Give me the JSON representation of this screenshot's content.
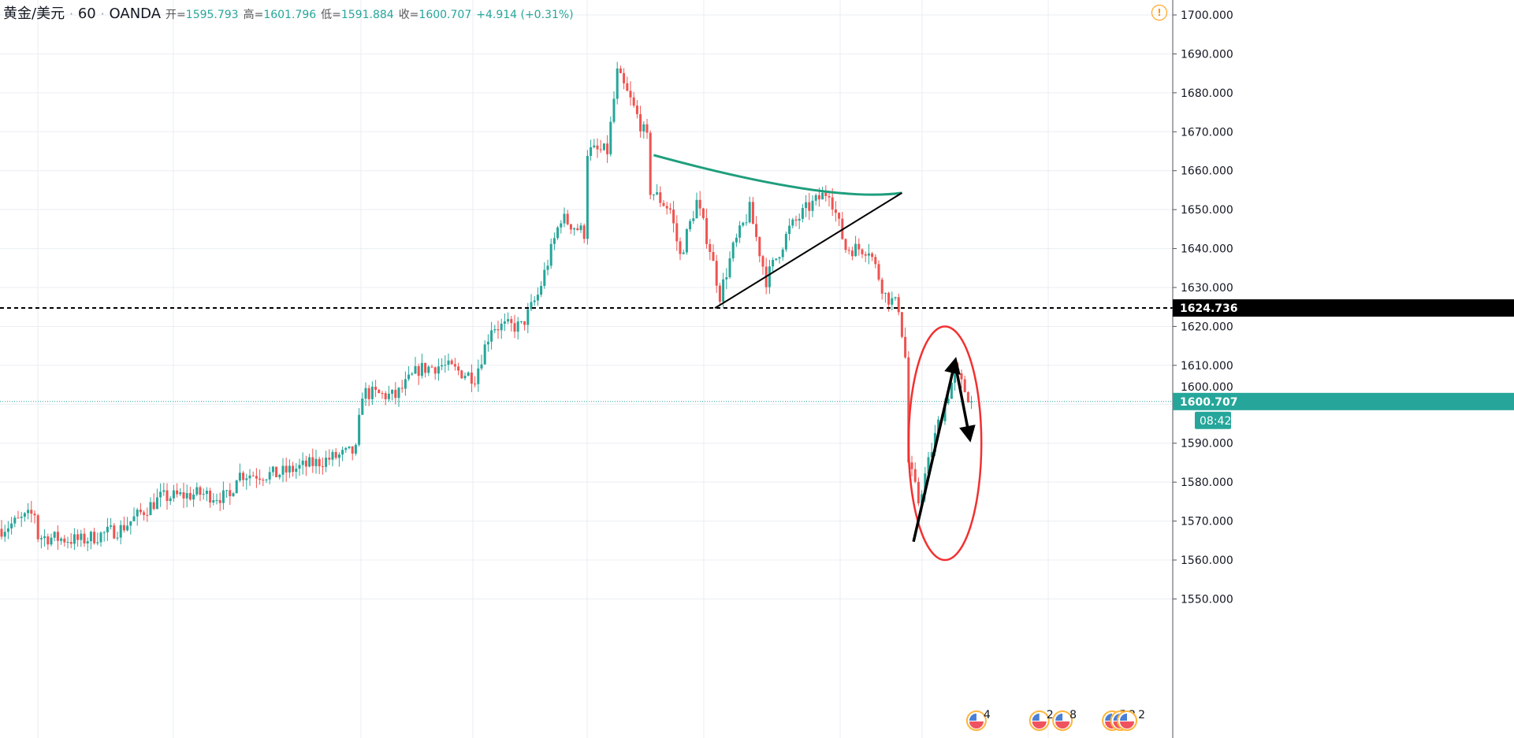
{
  "header": {
    "symbol": "黄金/美元",
    "interval": "60",
    "source": "OANDA",
    "sep": "·",
    "open_label": "开=",
    "open": "1595.793",
    "high_label": "高=",
    "high": "1601.796",
    "low_label": "低=",
    "low": "1591.884",
    "close_label": "收=",
    "close": "1600.707",
    "change": "+4.914 (+0.31%)"
  },
  "alert_icon": "!",
  "colors": {
    "up": "#26a69a",
    "down": "#ef5350",
    "trendline_green": "#1e9e7c",
    "ellipse": "#f23030",
    "grid": "#e9eef3"
  },
  "chart_data": {
    "type": "candlestick",
    "title": "黄金/美元 60 OANDA",
    "ylim": [
      1547,
      1703
    ],
    "y_ticks": [
      "1700.000",
      "1690.000",
      "1680.000",
      "1670.000",
      "1660.000",
      "1650.000",
      "1640.000",
      "1630.000",
      "1620.000",
      "1610.000",
      "1600.000",
      "1590.000",
      "1580.000",
      "1570.000",
      "1560.000",
      "1550.000"
    ],
    "bar_count": 294,
    "close_path": [
      [
        0,
        1568
      ],
      [
        10,
        1572
      ],
      [
        11,
        1566
      ],
      [
        24,
        1565
      ],
      [
        36,
        1568
      ],
      [
        48,
        1576
      ],
      [
        60,
        1577
      ],
      [
        69,
        1576
      ],
      [
        71,
        1582
      ],
      [
        83,
        1582
      ],
      [
        95,
        1585
      ],
      [
        107,
        1588
      ],
      [
        109,
        1603
      ],
      [
        119,
        1602
      ],
      [
        126,
        1609
      ],
      [
        133,
        1610
      ],
      [
        143,
        1607
      ],
      [
        148,
        1620
      ],
      [
        157,
        1620
      ],
      [
        162,
        1628
      ],
      [
        169,
        1648
      ],
      [
        176,
        1644
      ],
      [
        177,
        1665
      ],
      [
        183,
        1665
      ],
      [
        186,
        1685
      ],
      [
        190,
        1678
      ],
      [
        195,
        1668
      ],
      [
        196,
        1655
      ],
      [
        202,
        1650
      ],
      [
        205,
        1638
      ],
      [
        210,
        1652
      ],
      [
        214,
        1640
      ],
      [
        217,
        1628
      ],
      [
        221,
        1640
      ],
      [
        226,
        1650
      ],
      [
        231,
        1632
      ],
      [
        238,
        1645
      ],
      [
        243,
        1650
      ],
      [
        250,
        1655
      ],
      [
        255,
        1640
      ],
      [
        262,
        1640
      ],
      [
        267,
        1628
      ],
      [
        271,
        1625
      ],
      [
        273,
        1612
      ],
      [
        274,
        1585
      ],
      [
        277,
        1575
      ],
      [
        283,
        1595
      ],
      [
        288,
        1608
      ],
      [
        293,
        1600.707
      ]
    ],
    "horizontal_line": {
      "price": 1624.736,
      "label": "1624.736"
    },
    "last_price": {
      "price": 1600.707,
      "label": "1600.707",
      "countdown": "08:42"
    },
    "drawings": {
      "arc": {
        "from": [
          197,
          1664
        ],
        "via": [
          250,
          1652.5
        ],
        "to": [
          272,
          1654.3
        ]
      },
      "trendline": {
        "from": [
          215.5,
          1624.7
        ],
        "to": [
          272,
          1654.3
        ]
      },
      "ellipse": {
        "center": [
          285,
          1584
        ],
        "half_width_bars": 11,
        "top": 1620,
        "bottom": 1560
      },
      "arrows": [
        {
          "from": [
            275.5,
            1564.7
          ],
          "to": [
            288,
            1610.8
          ]
        },
        {
          "from": [
            288,
            1610.8
          ],
          "to": [
            292.4,
            1591.6
          ]
        }
      ]
    },
    "events": [
      {
        "bar": 294.5,
        "label": "4"
      },
      {
        "bar": 313.5,
        "label": "2"
      },
      {
        "bar": 320.5,
        "label": "8"
      },
      {
        "bar": 335.5,
        "label": "5"
      },
      {
        "bar": 338,
        "label": "2"
      },
      {
        "bar": 340,
        "label": "2"
      }
    ]
  }
}
